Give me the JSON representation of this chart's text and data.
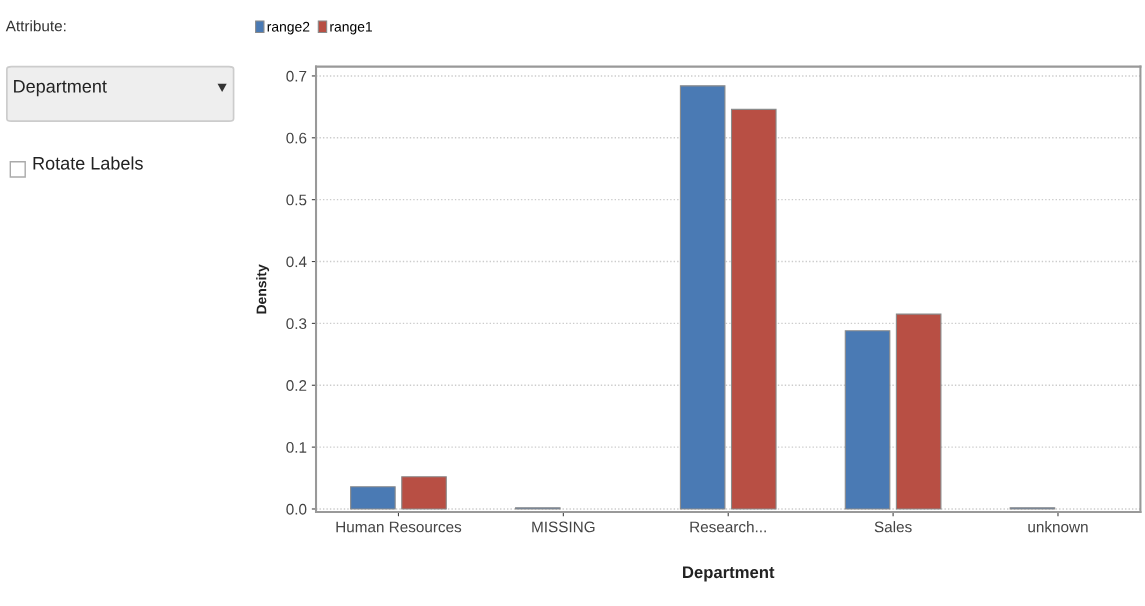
{
  "chart_data": {
    "type": "bar",
    "xlabel": "Department",
    "ylabel": "Density",
    "categories": [
      "Human Resources",
      "MISSING",
      "Research...",
      "Sales",
      "unknown"
    ],
    "series": [
      {
        "name": "range2",
        "color": "#4a7ab4",
        "values": [
          0.036,
          0.002,
          0.684,
          0.288,
          0.002
        ]
      },
      {
        "name": "range1",
        "color": "#b84f44",
        "values": [
          0.052,
          null,
          0.646,
          0.315,
          null
        ]
      }
    ],
    "ylim": [
      -0.005,
      0.715
    ],
    "yticks": [
      {
        "value": 0,
        "label": "0.0"
      },
      0.1,
      0.2,
      0.3,
      0.4,
      0.5,
      0.6,
      0.7
    ],
    "grid": "y",
    "legend": "top left",
    "annotations": [
      "Attribute:",
      "Department",
      "Rotate Labels"
    ]
  }
}
